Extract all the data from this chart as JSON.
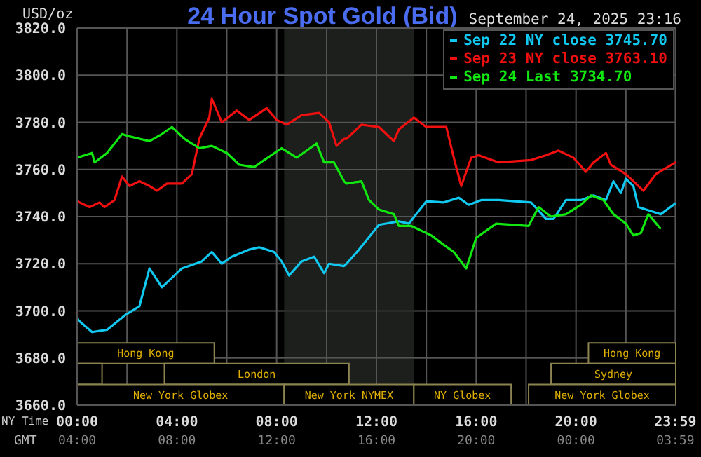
{
  "chart_data": {
    "type": "line",
    "title": "24 Hour Spot Gold (Bid)",
    "ylabel": "USD/oz",
    "xlabel": "NY Time",
    "x2label": "GMT",
    "annotations": [
      "September 24, 2025 23:16"
    ],
    "xlim": [
      0,
      24
    ],
    "xticks": [
      {
        "value": 0,
        "label": "00:00"
      },
      {
        "value": 2,
        "label": null
      },
      {
        "value": 4,
        "label": "04:00"
      },
      {
        "value": 6,
        "label": null
      },
      {
        "value": 8,
        "label": "08:00"
      },
      {
        "value": 10,
        "label": null
      },
      {
        "value": 12,
        "label": "12:00"
      },
      {
        "value": 14,
        "label": null
      },
      {
        "value": 16,
        "label": "16:00"
      },
      {
        "value": 18,
        "label": null
      },
      {
        "value": 20,
        "label": "20:00"
      },
      {
        "value": 22,
        "label": null
      },
      {
        "value": 23.983,
        "label": "23:59"
      }
    ],
    "x2lim": [
      "2025-09-24T04:00",
      "2025-09-25T04:00"
    ],
    "x2ticks": [
      {
        "value": "2025-09-24T04:00",
        "label": "04:00"
      },
      {
        "value": "2025-09-24T08:00",
        "label": "08:00"
      },
      {
        "value": "2025-09-24T12:00",
        "label": "12:00"
      },
      {
        "value": "2025-09-24T16:00",
        "label": "16:00"
      },
      {
        "value": "2025-09-24T20:00",
        "label": "20:00"
      },
      {
        "value": "2025-09-25T00:00",
        "label": "00:00"
      },
      {
        "value": "2025-09-25T03:59",
        "label": "03:59"
      }
    ],
    "ylim": [
      3660,
      3820
    ],
    "yticks": [
      {
        "value": 3660,
        "label": "3660.0"
      },
      {
        "value": 3680,
        "label": "3680.0"
      },
      {
        "value": 3700,
        "label": "3700.0"
      },
      {
        "value": 3720,
        "label": "3720.0"
      },
      {
        "value": 3740,
        "label": "3740.0"
      },
      {
        "value": 3760,
        "label": "3760.0"
      },
      {
        "value": 3780,
        "label": "3780.0"
      },
      {
        "value": 3800,
        "label": "3800.0"
      },
      {
        "value": 3820,
        "label": "3820.0"
      }
    ],
    "grid": true,
    "legend": "top right",
    "bands": [
      {
        "axis": "x",
        "from": 8.3,
        "to": 13.5,
        "color": "#1c1f1c"
      },
      {
        "axis": "x",
        "from": 0,
        "to": 5.5,
        "label": "Hong Kong",
        "color": "#8c8450"
      },
      {
        "axis": "x",
        "from": 20.5,
        "to": 24,
        "label": "Hong Kong",
        "color": "#8c8450"
      },
      {
        "axis": "x",
        "from": 0,
        "to": 1,
        "label": null,
        "color": "#8c8450"
      },
      {
        "axis": "x",
        "from": 3.5,
        "to": 10.9,
        "label": "London",
        "color": "#8c8450"
      },
      {
        "axis": "x",
        "from": 19,
        "to": 24,
        "label": "Sydney",
        "color": "#8c8450"
      },
      {
        "axis": "x",
        "from": 0,
        "to": 8.3,
        "label": "New York Globex",
        "color": "#8c8450"
      },
      {
        "axis": "x",
        "from": 8.3,
        "to": 13.5,
        "label": "New York NYMEX",
        "color": "#8c8450"
      },
      {
        "axis": "x",
        "from": 13.5,
        "to": 17.4,
        "label": "NY Globex",
        "color": "#8c8450"
      },
      {
        "axis": "x",
        "from": 18.1,
        "to": 24,
        "label": "New York Globex",
        "color": "#8c8450"
      }
    ],
    "series": [
      {
        "name": "Sep 22 NY close 3745.70",
        "color": "#10c8f0",
        "x": [
          0,
          0.6,
          1.2,
          1.9,
          2.5,
          2.9,
          3.4,
          3.8,
          4.2,
          5.0,
          5.4,
          5.8,
          6.2,
          6.9,
          7.3,
          7.9,
          8.2,
          8.5,
          9.0,
          9.5,
          9.9,
          10.1,
          10.7,
          10.8,
          11.3,
          12.1,
          12.9,
          13.3,
          14.0,
          14.7,
          15.3,
          15.7,
          16.2,
          16.9,
          18.2,
          18.8,
          19.1,
          19.6,
          20.2,
          20.7,
          21.2,
          21.5,
          21.8,
          22.0,
          22.3,
          22.5,
          23.1,
          23.4,
          24.0
        ],
        "values": [
          3696.5,
          3691,
          3692,
          3698,
          3702,
          3718,
          3710,
          3714,
          3718,
          3721,
          3725,
          3720,
          3723,
          3726,
          3727,
          3725,
          3721,
          3715,
          3721,
          3723,
          3716,
          3720,
          3719,
          3720,
          3726,
          3736.5,
          3738,
          3737,
          3746.5,
          3746,
          3748,
          3745,
          3747,
          3747,
          3746,
          3739,
          3739,
          3747,
          3747,
          3749,
          3747,
          3755,
          3750,
          3756,
          3753,
          3744,
          3742,
          3741,
          3745.7
        ]
      },
      {
        "name": "Sep 23 NY close 3763.10",
        "color": "#f01010",
        "x": [
          0,
          0.5,
          0.9,
          1.1,
          1.5,
          1.8,
          2.1,
          2.5,
          2.9,
          3.2,
          3.6,
          4.2,
          4.6,
          4.9,
          5.3,
          5.4,
          5.8,
          6.4,
          6.9,
          7.6,
          8.0,
          8.4,
          9.0,
          9.7,
          10.1,
          10.4,
          10.7,
          10.8,
          11.4,
          12.1,
          12.7,
          12.9,
          13.5,
          14.0,
          14.8,
          15.1,
          15.4,
          15.8,
          16.1,
          16.9,
          18.2,
          18.8,
          19.3,
          19.9,
          20.4,
          20.7,
          21.2,
          21.4,
          22.0,
          22.7,
          23.2,
          24.0
        ],
        "values": [
          3746.5,
          3744,
          3746,
          3744,
          3747,
          3757,
          3753,
          3755,
          3753,
          3751,
          3754,
          3754,
          3758,
          3773,
          3782,
          3790,
          3780,
          3785,
          3781,
          3786,
          3781,
          3779,
          3783,
          3784,
          3780,
          3770,
          3773,
          3773,
          3779,
          3778,
          3772,
          3777,
          3782,
          3778,
          3778,
          3765,
          3753,
          3765,
          3766,
          3763,
          3764,
          3766,
          3768,
          3765,
          3759,
          3763,
          3767,
          3762,
          3758,
          3751,
          3758,
          3763.1
        ]
      },
      {
        "name": "Sep 24 Last 3734.70",
        "color": "#10e810",
        "x": [
          0,
          0.6,
          0.7,
          1.2,
          1.8,
          2.1,
          2.5,
          2.9,
          3.4,
          3.8,
          4.3,
          4.9,
          5.4,
          6.0,
          6.5,
          7.1,
          7.5,
          8.2,
          8.8,
          9.6,
          9.9,
          10.3,
          10.7,
          10.8,
          11.4,
          11.7,
          12.1,
          12.7,
          12.9,
          13.4,
          14.2,
          14.7,
          15.1,
          15.6,
          16.0,
          16.8,
          18.1,
          18.5,
          19.0,
          19.6,
          20.2,
          20.6,
          21.1,
          21.5,
          22.0,
          22.3,
          22.6,
          22.9,
          23.3,
          23.4
        ],
        "values": [
          3765,
          3767,
          3763,
          3767,
          3775,
          3774,
          3773,
          3772,
          3775,
          3778,
          3773,
          3769,
          3770,
          3767,
          3762,
          3761,
          3764,
          3769,
          3765,
          3771,
          3763,
          3763,
          3755,
          3754,
          3755,
          3747,
          3743,
          3741,
          3736,
          3736,
          3732,
          3728,
          3725,
          3718,
          3731,
          3737,
          3736,
          3744,
          3740,
          3741,
          3745,
          3749,
          3747,
          3741,
          3737,
          3732,
          3733,
          3741,
          3736,
          3734.7
        ]
      }
    ]
  }
}
